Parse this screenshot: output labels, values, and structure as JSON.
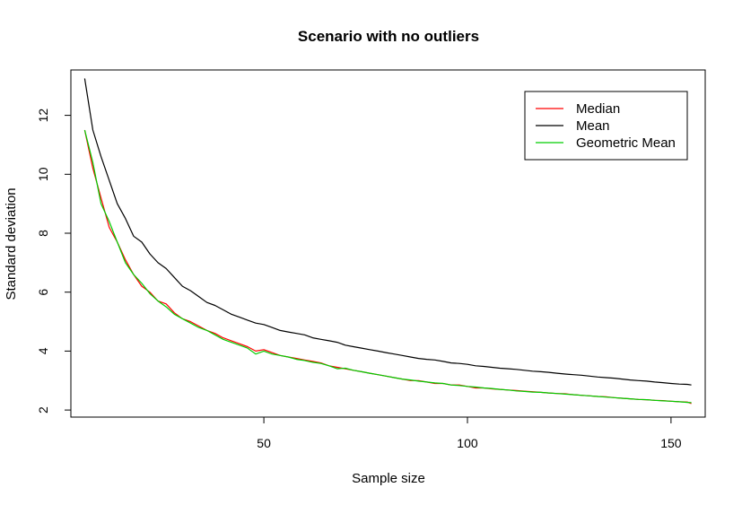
{
  "chart_data": {
    "type": "line",
    "title": "Scenario with no outliers",
    "xlabel": "Sample size",
    "ylabel": "Standard deviation",
    "xlim": [
      2.6,
      158.4
    ],
    "ylim": [
      1.76,
      13.54
    ],
    "x_ticks": [
      50,
      100,
      150
    ],
    "y_ticks": [
      2,
      4,
      6,
      8,
      10,
      12
    ],
    "legend": "top-right",
    "grid": false,
    "x": [
      6,
      8,
      10,
      12,
      14,
      16,
      18,
      20,
      22,
      24,
      26,
      28,
      30,
      32,
      34,
      36,
      38,
      40,
      42,
      44,
      46,
      48,
      50,
      52,
      54,
      56,
      58,
      60,
      62,
      64,
      66,
      68,
      70,
      72,
      74,
      76,
      78,
      80,
      82,
      84,
      86,
      88,
      90,
      92,
      94,
      96,
      98,
      100,
      102,
      104,
      106,
      108,
      110,
      112,
      114,
      116,
      118,
      120,
      122,
      124,
      126,
      128,
      130,
      132,
      134,
      136,
      138,
      140,
      142,
      144,
      146,
      148,
      150,
      152,
      154,
      155
    ],
    "series": [
      {
        "name": "Median",
        "color": "#ff0000",
        "values": [
          11.5,
          10.2,
          9.2,
          8.2,
          7.7,
          7.1,
          6.6,
          6.2,
          6.0,
          5.7,
          5.6,
          5.3,
          5.1,
          5.0,
          4.85,
          4.7,
          4.6,
          4.45,
          4.35,
          4.25,
          4.15,
          4.0,
          4.05,
          3.95,
          3.85,
          3.8,
          3.75,
          3.7,
          3.65,
          3.6,
          3.5,
          3.45,
          3.4,
          3.35,
          3.3,
          3.25,
          3.2,
          3.15,
          3.1,
          3.05,
          3.0,
          3.0,
          2.95,
          2.9,
          2.9,
          2.85,
          2.85,
          2.8,
          2.75,
          2.75,
          2.72,
          2.7,
          2.68,
          2.66,
          2.64,
          2.62,
          2.6,
          2.58,
          2.56,
          2.55,
          2.52,
          2.5,
          2.48,
          2.46,
          2.45,
          2.42,
          2.4,
          2.38,
          2.36,
          2.35,
          2.33,
          2.32,
          2.3,
          2.28,
          2.27,
          2.22
        ]
      },
      {
        "name": "Mean",
        "color": "#000000",
        "values": [
          13.25,
          11.5,
          10.6,
          9.8,
          9.0,
          8.5,
          7.9,
          7.7,
          7.3,
          7.0,
          6.8,
          6.5,
          6.2,
          6.05,
          5.85,
          5.65,
          5.55,
          5.4,
          5.25,
          5.15,
          5.05,
          4.95,
          4.9,
          4.8,
          4.7,
          4.65,
          4.6,
          4.55,
          4.45,
          4.4,
          4.35,
          4.3,
          4.2,
          4.15,
          4.1,
          4.05,
          4.0,
          3.95,
          3.9,
          3.85,
          3.8,
          3.75,
          3.72,
          3.7,
          3.65,
          3.6,
          3.58,
          3.55,
          3.5,
          3.48,
          3.45,
          3.42,
          3.4,
          3.38,
          3.35,
          3.32,
          3.3,
          3.28,
          3.25,
          3.22,
          3.2,
          3.18,
          3.15,
          3.12,
          3.1,
          3.08,
          3.05,
          3.02,
          3.0,
          2.98,
          2.95,
          2.93,
          2.9,
          2.88,
          2.87,
          2.85
        ]
      },
      {
        "name": "Geometric Mean",
        "color": "#00cd00",
        "values": [
          11.5,
          10.4,
          9.0,
          8.4,
          7.7,
          7.0,
          6.6,
          6.3,
          5.95,
          5.7,
          5.5,
          5.25,
          5.1,
          4.95,
          4.8,
          4.7,
          4.55,
          4.4,
          4.3,
          4.2,
          4.1,
          3.9,
          4.0,
          3.9,
          3.85,
          3.8,
          3.72,
          3.68,
          3.62,
          3.58,
          3.5,
          3.4,
          3.42,
          3.35,
          3.3,
          3.25,
          3.2,
          3.15,
          3.1,
          3.05,
          3.02,
          2.98,
          2.95,
          2.92,
          2.9,
          2.85,
          2.83,
          2.8,
          2.78,
          2.75,
          2.73,
          2.7,
          2.68,
          2.65,
          2.63,
          2.61,
          2.6,
          2.58,
          2.56,
          2.54,
          2.52,
          2.5,
          2.48,
          2.46,
          2.44,
          2.42,
          2.4,
          2.38,
          2.36,
          2.35,
          2.33,
          2.31,
          2.3,
          2.28,
          2.26,
          2.25
        ]
      }
    ]
  }
}
